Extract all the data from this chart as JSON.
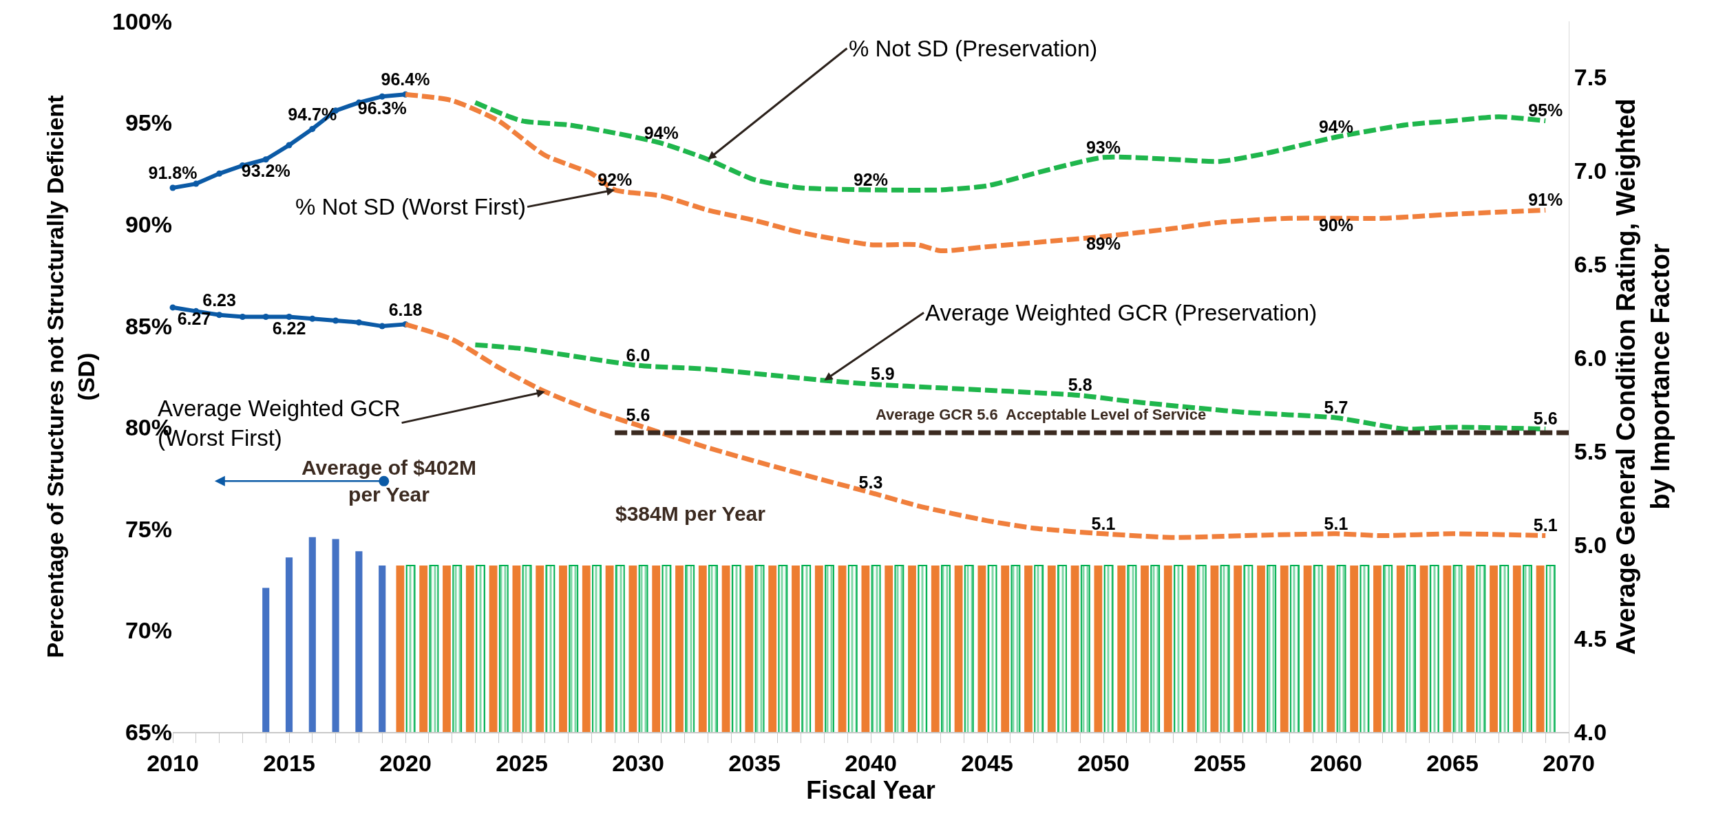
{
  "chart_data": {
    "type": "line",
    "xlabel": "Fiscal Year",
    "ylabel": "Percentage of Structures not Structurally Deficient\n(SD)",
    "y2label": "Average General Condition Rating, Weighted\nby Importance Factor",
    "xlim": [
      2010,
      2070
    ],
    "xticks": [
      2010,
      2015,
      2020,
      2025,
      2030,
      2035,
      2040,
      2045,
      2050,
      2055,
      2060,
      2065,
      2070
    ],
    "ylim": [
      65,
      100
    ],
    "yticks": [
      {
        "value": 65,
        "label": "65%"
      },
      {
        "value": 70,
        "label": "70%"
      },
      {
        "value": 75,
        "label": "75%"
      },
      {
        "value": 80,
        "label": "80%"
      },
      {
        "value": 85,
        "label": "85%"
      },
      {
        "value": 90,
        "label": "90%"
      },
      {
        "value": 95,
        "label": "95%"
      },
      {
        "value": 100,
        "label": "100%"
      }
    ],
    "y2lim": [
      4,
      7.8
    ],
    "y2ticks": [
      {
        "value": 4,
        "label": "4.0"
      },
      {
        "value": 4.5,
        "label": "4.5"
      },
      {
        "value": 5,
        "label": "5.0"
      },
      {
        "value": 5.5,
        "label": "5.5"
      },
      {
        "value": 6,
        "label": "6.0"
      },
      {
        "value": 6.5,
        "label": "6.5"
      },
      {
        "value": 7,
        "label": "7.0"
      },
      {
        "value": 7.5,
        "label": "7.5"
      }
    ],
    "annotations": [
      "Average of $402M\nper Year",
      "$384M per Year"
    ],
    "series": [
      {
        "type": "bar",
        "color": "#4472c4",
        "x": [
          2014,
          2015,
          2016,
          2017,
          2018,
          2019
        ],
        "values": [
          72.1,
          73.6,
          74.6,
          74.5,
          73.9,
          73.2
        ]
      },
      {
        "type": "bar",
        "color": "#ed7d31",
        "x": [
          2020,
          2021,
          2022,
          2023,
          2024,
          2025,
          2026,
          2027,
          2028,
          2029,
          2030,
          2031,
          2032,
          2033,
          2034,
          2035,
          2036,
          2037,
          2038,
          2039,
          2040,
          2041,
          2042,
          2043,
          2044,
          2045,
          2046,
          2047,
          2048,
          2049,
          2050,
          2051,
          2052,
          2053,
          2054,
          2055,
          2056,
          2057,
          2058,
          2059,
          2060,
          2061,
          2062,
          2063,
          2064,
          2065,
          2066,
          2067,
          2068,
          2069
        ],
        "values": [
          73.2,
          73.2,
          73.2,
          73.2,
          73.2,
          73.2,
          73.2,
          73.2,
          73.2,
          73.2,
          73.2,
          73.2,
          73.2,
          73.2,
          73.2,
          73.2,
          73.2,
          73.2,
          73.2,
          73.2,
          73.2,
          73.2,
          73.2,
          73.2,
          73.2,
          73.2,
          73.2,
          73.2,
          73.2,
          73.2,
          73.2,
          73.2,
          73.2,
          73.2,
          73.2,
          73.2,
          73.2,
          73.2,
          73.2,
          73.2,
          73.2,
          73.2,
          73.2,
          73.2,
          73.2,
          73.2,
          73.2,
          73.2,
          73.2,
          73.2
        ]
      },
      {
        "type": "bar",
        "color": "#00b050",
        "x": [
          2020,
          2021,
          2022,
          2023,
          2024,
          2025,
          2026,
          2027,
          2028,
          2029,
          2030,
          2031,
          2032,
          2033,
          2034,
          2035,
          2036,
          2037,
          2038,
          2039,
          2040,
          2041,
          2042,
          2043,
          2044,
          2045,
          2046,
          2047,
          2048,
          2049,
          2050,
          2051,
          2052,
          2053,
          2054,
          2055,
          2056,
          2057,
          2058,
          2059,
          2060,
          2061,
          2062,
          2063,
          2064,
          2065,
          2066,
          2067,
          2068,
          2069
        ],
        "values": [
          73.2,
          73.2,
          73.2,
          73.2,
          73.2,
          73.2,
          73.2,
          73.2,
          73.2,
          73.2,
          73.2,
          73.2,
          73.2,
          73.2,
          73.2,
          73.2,
          73.2,
          73.2,
          73.2,
          73.2,
          73.2,
          73.2,
          73.2,
          73.2,
          73.2,
          73.2,
          73.2,
          73.2,
          73.2,
          73.2,
          73.2,
          73.2,
          73.2,
          73.2,
          73.2,
          73.2,
          73.2,
          73.2,
          73.2,
          73.2,
          73.2,
          73.2,
          73.2,
          73.2,
          73.2,
          73.2,
          73.2,
          73.2,
          73.2,
          73.2
        ]
      },
      {
        "color": "#0b5aa6",
        "marker": "circle",
        "line_style": "solid",
        "x": [
          2010,
          2011,
          2012,
          2013,
          2014,
          2015,
          2016,
          2017,
          2018,
          2019,
          2020
        ],
        "values": [
          91.8,
          92.0,
          92.5,
          92.9,
          93.2,
          93.9,
          94.7,
          95.6,
          96.0,
          96.3,
          96.4
        ],
        "value_labels": [
          "91.8%",
          null,
          null,
          null,
          "93.2%",
          null,
          "94.7%",
          null,
          null,
          "96.3%",
          "96.4%"
        ]
      },
      {
        "axis": "y2",
        "color": "#0b5aa6",
        "marker": "circle",
        "line_style": "solid",
        "x": [
          2010,
          2011,
          2012,
          2013,
          2014,
          2015,
          2016,
          2017,
          2018,
          2019,
          2020
        ],
        "values": [
          6.27,
          6.25,
          6.23,
          6.22,
          6.22,
          6.22,
          6.21,
          6.2,
          6.19,
          6.17,
          6.18
        ],
        "value_labels": [
          "6.27",
          null,
          "6.23",
          null,
          null,
          "6.22",
          null,
          null,
          null,
          null,
          "6.18"
        ]
      },
      {
        "name": "% Not SD (Preservation)",
        "color": "#1fb64c",
        "line_style": "dashed",
        "x": [
          2023,
          2025,
          2027,
          2029,
          2031,
          2033,
          2035,
          2037,
          2040,
          2043,
          2045,
          2047,
          2050,
          2053,
          2055,
          2057,
          2060,
          2063,
          2065,
          2067,
          2069
        ],
        "values": [
          96.0,
          95.1,
          94.9,
          94.5,
          94.0,
          93.2,
          92.2,
          91.8,
          91.7,
          91.7,
          91.9,
          92.5,
          93.3,
          93.2,
          93.1,
          93.5,
          94.3,
          94.9,
          95.1,
          95.3,
          95.1
        ],
        "value_labels": [
          null,
          null,
          null,
          null,
          "94%",
          null,
          null,
          null,
          "92%",
          null,
          null,
          null,
          "93%",
          null,
          null,
          null,
          "94%",
          null,
          null,
          null,
          "95%"
        ]
      },
      {
        "name": "% Not SD (Worst First)",
        "color": "#f07f3c",
        "line_style": "dashed",
        "x": [
          2020,
          2022,
          2024,
          2026,
          2028,
          2029,
          2031,
          2033,
          2035,
          2037,
          2040,
          2042,
          2043,
          2045,
          2048,
          2050,
          2053,
          2055,
          2058,
          2060,
          2062,
          2065,
          2069
        ],
        "values": [
          96.4,
          96.1,
          95.1,
          93.4,
          92.5,
          91.7,
          91.4,
          90.7,
          90.2,
          89.6,
          89.0,
          89.0,
          88.7,
          88.9,
          89.2,
          89.4,
          89.8,
          90.1,
          90.3,
          90.3,
          90.3,
          90.5,
          90.7
        ],
        "value_labels": [
          null,
          null,
          null,
          null,
          null,
          "92%",
          null,
          null,
          null,
          null,
          null,
          null,
          null,
          null,
          null,
          "89%",
          null,
          null,
          null,
          "90%",
          null,
          null,
          "91%"
        ]
      },
      {
        "axis": "y2",
        "name": "Average Weighted GCR (Preservation)",
        "color": "#1fb64c",
        "line_style": "dashed",
        "x": [
          2023,
          2025,
          2030,
          2033,
          2038,
          2040,
          2043,
          2049,
          2051,
          2056,
          2060,
          2063,
          2065,
          2069
        ],
        "values": [
          6.07,
          6.05,
          5.96,
          5.94,
          5.88,
          5.86,
          5.84,
          5.8,
          5.77,
          5.71,
          5.68,
          5.62,
          5.63,
          5.62
        ],
        "value_labels": [
          null,
          null,
          "6.0",
          null,
          null,
          "5.9",
          null,
          "5.8",
          null,
          null,
          "5.7",
          null,
          null,
          "5.6"
        ]
      },
      {
        "axis": "y2",
        "name": "Average Weighted GCR\n(Worst First)",
        "color": "#f07f3c",
        "line_style": "dashed",
        "x": [
          2020,
          2022,
          2024,
          2026,
          2028,
          2030,
          2033,
          2037,
          2040,
          2042,
          2045,
          2047,
          2050,
          2053,
          2056,
          2060,
          2062,
          2065,
          2069
        ],
        "values": [
          6.18,
          6.1,
          5.95,
          5.82,
          5.72,
          5.64,
          5.52,
          5.38,
          5.28,
          5.21,
          5.13,
          5.09,
          5.06,
          5.04,
          5.05,
          5.06,
          5.05,
          5.06,
          5.05
        ],
        "value_labels": [
          null,
          null,
          null,
          null,
          null,
          "5.6",
          null,
          null,
          "5.3",
          null,
          null,
          null,
          "5.1",
          null,
          null,
          "5.1",
          null,
          null,
          "5.1"
        ]
      },
      {
        "axis": "y2",
        "name": "Average GCR 5.6  Acceptable Level of Service",
        "color": "#3b2a20",
        "line_style": "dashed",
        "x": [
          2029,
          2070
        ],
        "values": [
          5.6,
          5.6
        ]
      }
    ]
  }
}
